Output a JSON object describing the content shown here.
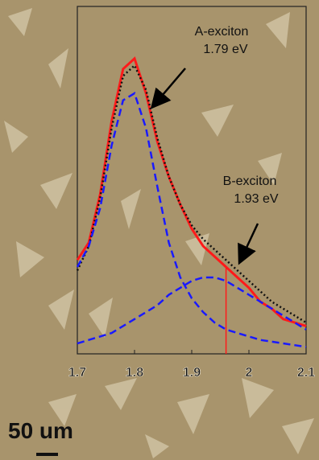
{
  "chart_data": {
    "type": "line",
    "x": [
      1.7,
      1.72,
      1.74,
      1.76,
      1.78,
      1.8,
      1.82,
      1.84,
      1.86,
      1.88,
      1.9,
      1.92,
      1.94,
      1.96,
      1.98,
      2.0,
      2.02,
      2.04,
      2.06,
      2.08,
      2.1
    ],
    "series": [
      {
        "name": "PL",
        "color": "#ff1a1a",
        "style": "solid",
        "values": [
          0.27,
          0.32,
          0.46,
          0.67,
          0.82,
          0.85,
          0.75,
          0.61,
          0.51,
          0.43,
          0.36,
          0.31,
          0.28,
          0.25,
          0.22,
          0.19,
          0.15,
          0.13,
          0.1,
          0.09,
          0.08
        ]
      },
      {
        "name": "fit",
        "color": "#111111",
        "style": "dotted",
        "values": [
          0.24,
          0.31,
          0.45,
          0.65,
          0.8,
          0.83,
          0.76,
          0.62,
          0.51,
          0.43,
          0.37,
          0.33,
          0.3,
          0.27,
          0.24,
          0.21,
          0.18,
          0.15,
          0.13,
          0.11,
          0.09
        ]
      },
      {
        "name": "A",
        "color": "#1a1aff",
        "style": "dashed",
        "values": [
          0.25,
          0.31,
          0.42,
          0.6,
          0.73,
          0.75,
          0.65,
          0.48,
          0.32,
          0.22,
          0.16,
          0.12,
          0.09,
          0.07,
          0.06,
          0.05,
          0.04,
          0.035,
          0.03,
          0.025,
          0.02
        ]
      },
      {
        "name": "B",
        "color": "#1a1aff",
        "style": "dashed",
        "values": [
          0.03,
          0.04,
          0.05,
          0.06,
          0.08,
          0.1,
          0.12,
          0.14,
          0.17,
          0.19,
          0.21,
          0.22,
          0.22,
          0.21,
          0.19,
          0.17,
          0.15,
          0.13,
          0.11,
          0.09,
          0.07
        ]
      }
    ],
    "vline_x": 1.96,
    "xlim": [
      1.7,
      2.1
    ],
    "xticks": [
      1.7,
      1.8,
      1.9,
      2.0,
      2.1
    ],
    "ylim": [
      0,
      1
    ],
    "annotations": [
      {
        "text": "A-exciton"
      },
      {
        "text": "1.79 eV"
      },
      {
        "text": "B-exciton"
      },
      {
        "text": "1.93 eV"
      }
    ],
    "scale_bar": "50 um"
  }
}
